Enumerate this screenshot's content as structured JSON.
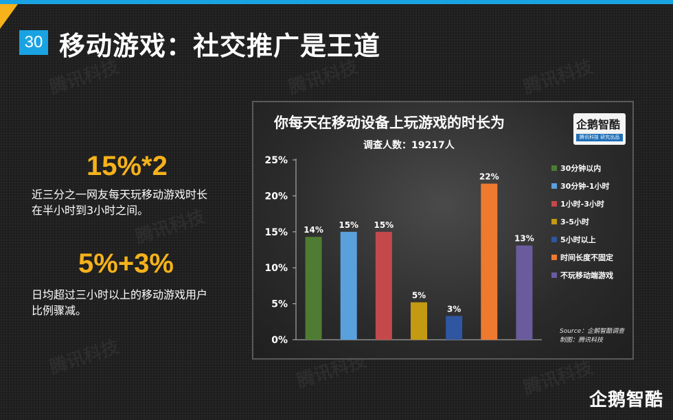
{
  "slide": {
    "page_number": "30",
    "title": "移动游戏：社交推广是王道"
  },
  "left_panel": {
    "stat1": "15%*2",
    "desc1_line1": "近三分之一网友每天玩移动游戏时长",
    "desc1_line2": "在半小时到3小时之间。",
    "stat2": "5%+3%",
    "desc2_line1": "日均超过三小时以上的移动游戏用户",
    "desc2_line2": "比例骤减。"
  },
  "watermark": "腾讯科技",
  "chart_logo": {
    "text": "企鹅智酷",
    "strip": "腾讯科技 研究出品"
  },
  "source": {
    "line1": "Source：企鹅智酷调查",
    "line2": "制图：腾讯科技"
  },
  "footer_logo": "企鹅智酷",
  "colors": {
    "accent_blue": "#1aa3e3",
    "accent_orange": "#f6b21b"
  },
  "chart_data": {
    "type": "bar",
    "title": "你每天在移动设备上玩游戏的时长为",
    "subtitle": "调查人数：19217人",
    "categories": [
      "30分钟以内",
      "30分钟-1小时",
      "1小时-3小时",
      "3-5小时",
      "5小时以上",
      "时间长度不固定",
      "不玩移动端游戏"
    ],
    "values": [
      14.3,
      15.0,
      15.0,
      5.2,
      3.3,
      21.7,
      13.1
    ],
    "data_labels": [
      "14%",
      "15%",
      "15%",
      "5%",
      "3%",
      "22%",
      "13%"
    ],
    "colors": [
      "#4e7c32",
      "#5aa0dc",
      "#c5494a",
      "#c39a12",
      "#2f56a0",
      "#ee7a30",
      "#6a5b9d"
    ],
    "y_ticks": [
      0,
      5,
      10,
      15,
      20,
      25
    ],
    "y_tick_labels": [
      "0%",
      "5%",
      "10%",
      "15%",
      "20%",
      "25%"
    ],
    "ylim": [
      0,
      25
    ],
    "legend_position": "right",
    "grid": false
  }
}
